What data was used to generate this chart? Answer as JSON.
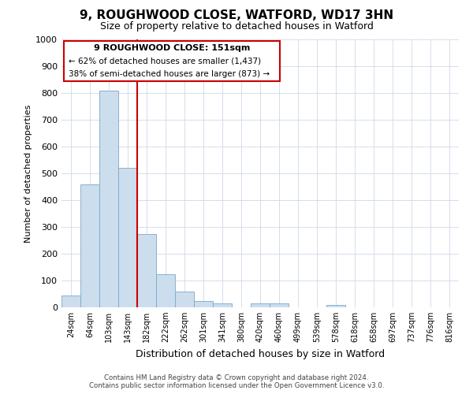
{
  "title": "9, ROUGHWOOD CLOSE, WATFORD, WD17 3HN",
  "subtitle": "Size of property relative to detached houses in Watford",
  "xlabel": "Distribution of detached houses by size in Watford",
  "ylabel": "Number of detached properties",
  "footer_line1": "Contains HM Land Registry data © Crown copyright and database right 2024.",
  "footer_line2": "Contains public sector information licensed under the Open Government Licence v3.0.",
  "annotation_line1": "9 ROUGHWOOD CLOSE: 151sqm",
  "annotation_line2": "← 62% of detached houses are smaller (1,437)",
  "annotation_line3": "38% of semi-detached houses are larger (873) →",
  "bin_labels": [
    "24sqm",
    "64sqm",
    "103sqm",
    "143sqm",
    "182sqm",
    "222sqm",
    "262sqm",
    "301sqm",
    "341sqm",
    "380sqm",
    "420sqm",
    "460sqm",
    "499sqm",
    "539sqm",
    "578sqm",
    "618sqm",
    "658sqm",
    "697sqm",
    "737sqm",
    "776sqm",
    "816sqm"
  ],
  "bar_values": [
    45,
    460,
    810,
    520,
    275,
    125,
    60,
    25,
    15,
    0,
    15,
    15,
    0,
    0,
    10,
    0,
    0,
    0,
    0,
    0,
    0
  ],
  "bar_color": "#ccdded",
  "bar_edgecolor": "#7aaac8",
  "property_line_x": 3.5,
  "property_line_color": "#cc0000",
  "annotation_box_edgecolor": "#cc0000",
  "ylim": [
    0,
    1000
  ],
  "background_color": "#ffffff",
  "grid_color": "#d0d8e8"
}
